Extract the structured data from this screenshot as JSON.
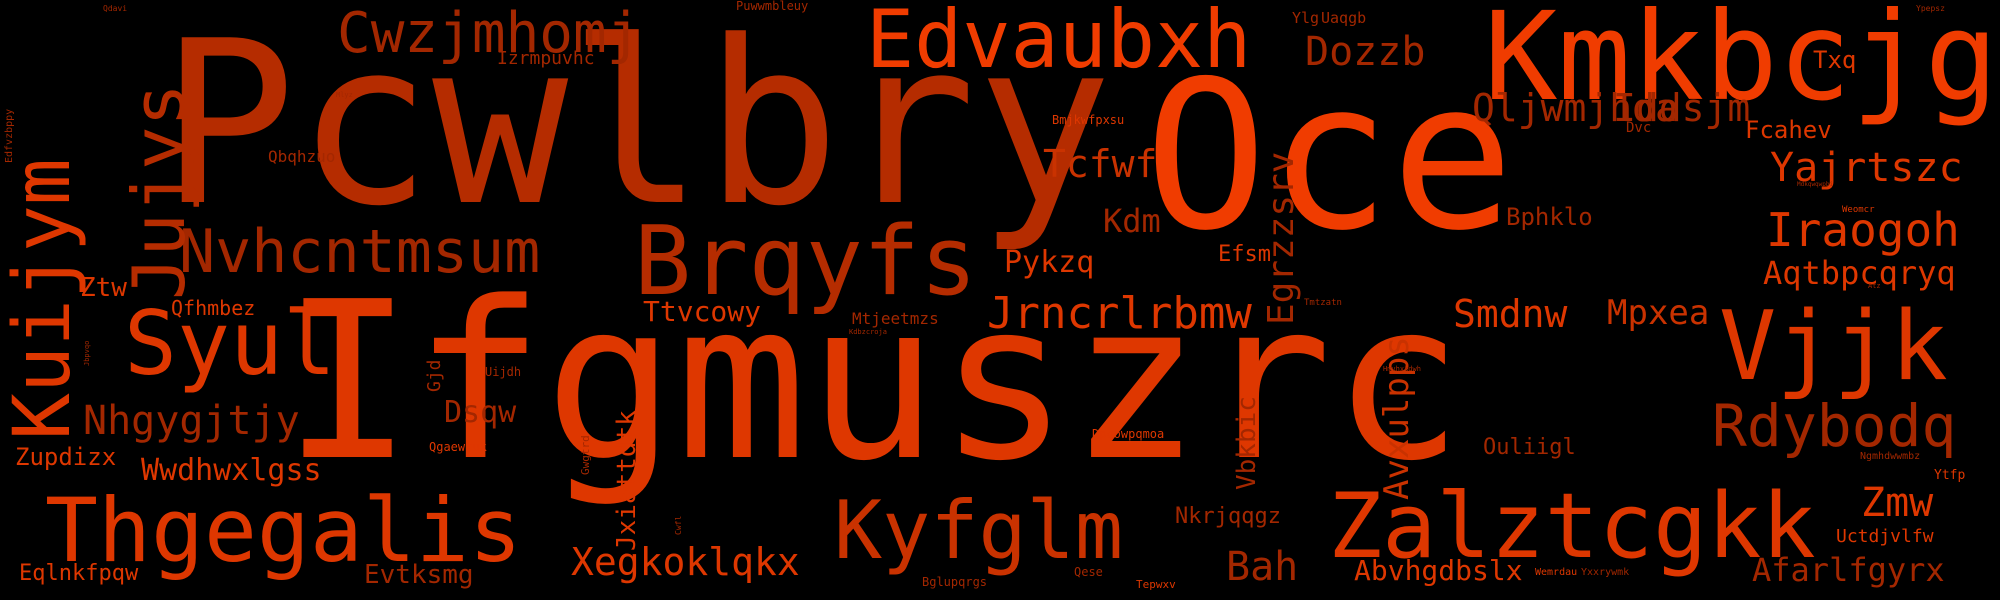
{
  "colors": {
    "background": "#000000",
    "deep": "#a32700",
    "dark": "#b52c00",
    "mid": "#c93200",
    "bright": "#de3700",
    "vivid": "#f03c00"
  },
  "words": [
    {
      "text": "Pcwlbry",
      "color": "dark"
    },
    {
      "text": "Ifgmuszrc",
      "color": "bright"
    },
    {
      "text": "Oce",
      "color": "vivid"
    },
    {
      "text": "Kmkbcjg",
      "color": "vivid"
    },
    {
      "text": "Edvaubxh",
      "color": "vivid"
    },
    {
      "text": "Brqyfs",
      "color": "dark"
    },
    {
      "text": "Vjjk",
      "color": "bright"
    },
    {
      "text": "Zalztcgkk",
      "color": "bright"
    },
    {
      "text": "Kyfglm",
      "color": "mid"
    },
    {
      "text": "Thgegalis",
      "color": "bright"
    },
    {
      "text": "Syul",
      "color": "bright"
    },
    {
      "text": "Cwzjmhomj",
      "color": "deep"
    },
    {
      "text": "Nvhcntmsum",
      "color": "deep"
    },
    {
      "text": "Jujys",
      "color": "dark"
    },
    {
      "text": "Kuijym",
      "color": "bright"
    },
    {
      "text": "Rdybodq",
      "color": "deep"
    },
    {
      "text": "Jrncrlrbmw",
      "color": "bright"
    },
    {
      "text": "Iraogoh",
      "color": "bright"
    },
    {
      "text": "Yajrtszc",
      "color": "bright"
    },
    {
      "text": "Qljwmjhda",
      "color": "deep"
    },
    {
      "text": "Iddsjm",
      "color": "deep"
    },
    {
      "text": "Dozzb",
      "color": "deep"
    },
    {
      "text": "Tcfwf",
      "color": "mid"
    },
    {
      "text": "Xegkoklqkx",
      "color": "bright"
    },
    {
      "text": "Nhgygjtjy",
      "color": "deep"
    },
    {
      "text": "Smdnw",
      "color": "bright"
    },
    {
      "text": "Mpxea",
      "color": "mid"
    },
    {
      "text": "Aqtbpcqryq",
      "color": "bright"
    },
    {
      "text": "Egrzzsrv",
      "color": "deep"
    },
    {
      "text": "Avxulpps",
      "color": "mid"
    },
    {
      "text": "Kdm",
      "color": "deep"
    },
    {
      "text": "Pykzq",
      "color": "bright"
    },
    {
      "text": "Ttvcowy",
      "color": "bright"
    },
    {
      "text": "Wwdhwxlgss",
      "color": "bright"
    },
    {
      "text": "Dsqw",
      "color": "deep"
    },
    {
      "text": "Bah",
      "color": "deep"
    },
    {
      "text": "Zmw",
      "color": "bright"
    },
    {
      "text": "Afarlfgyrx",
      "color": "deep"
    },
    {
      "text": "Abvhgdbslx",
      "color": "bright"
    },
    {
      "text": "Eqlnkfpqw",
      "color": "bright"
    },
    {
      "text": "Evtksmg",
      "color": "deep"
    },
    {
      "text": "Zupdizx",
      "color": "bright"
    },
    {
      "text": "Ztw",
      "color": "bright"
    },
    {
      "text": "Qfhmbez",
      "color": "bright"
    },
    {
      "text": "Txq",
      "color": "bright"
    },
    {
      "text": "Fcahev",
      "color": "bright"
    },
    {
      "text": "Bphklo",
      "color": "deep"
    },
    {
      "text": "Efsm",
      "color": "bright"
    },
    {
      "text": "Jxiattdtk",
      "color": "bright"
    },
    {
      "text": "Vbkbic",
      "color": "deep"
    },
    {
      "text": "Nkrjqqgz",
      "color": "deep"
    },
    {
      "text": "Ouliigl",
      "color": "deep"
    },
    {
      "text": "Uctdjvlfw",
      "color": "bright"
    },
    {
      "text": "Izrmpuvhc",
      "color": "deep"
    },
    {
      "text": "Qbqhzuo",
      "color": "deep"
    },
    {
      "text": "Gjd",
      "color": "deep"
    },
    {
      "text": "Mtjeetmzs",
      "color": "deep"
    },
    {
      "text": "Ylg",
      "color": "deep"
    },
    {
      "text": "Uaqgb",
      "color": "deep"
    },
    {
      "text": "Dvc",
      "color": "deep"
    },
    {
      "text": "Bmjkwfpxsu",
      "color": "bright"
    },
    {
      "text": "Puwwmbleuy",
      "color": "deep"
    },
    {
      "text": "Qgaewfuk",
      "color": "bright"
    },
    {
      "text": "Uijdh",
      "color": "deep"
    },
    {
      "text": "Dpqowpqmoa",
      "color": "bright"
    },
    {
      "text": "Gwgtrd",
      "color": "deep"
    },
    {
      "text": "Bglupqrgs",
      "color": "deep"
    },
    {
      "text": "Qese",
      "color": "deep"
    },
    {
      "text": "Tepwxv",
      "color": "bright"
    },
    {
      "text": "Wemrdau",
      "color": "bright"
    },
    {
      "text": "Yxxrywmk",
      "color": "deep"
    },
    {
      "text": "Ytfp",
      "color": "bright"
    },
    {
      "text": "Ngmhdwwmbz",
      "color": "deep"
    },
    {
      "text": "Weomcr",
      "color": "bright"
    },
    {
      "text": "Tmtzatn",
      "color": "deep"
    },
    {
      "text": "Edfvzbppy",
      "color": "deep"
    },
    {
      "text": "Qdavi",
      "color": "deep"
    },
    {
      "text": "Ypepsz",
      "color": "deep"
    },
    {
      "text": "Kdbzcroja",
      "color": "deep"
    },
    {
      "text": "Atz",
      "color": "deep"
    },
    {
      "text": "Hmvhxkdwh",
      "color": "deep"
    },
    {
      "text": "Mlyz",
      "color": "deep"
    },
    {
      "text": "Jbpvqo",
      "color": "deep"
    },
    {
      "text": "Cwfl",
      "color": "deep"
    },
    {
      "text": "Mdkqwqwpbi",
      "color": "deep"
    }
  ]
}
